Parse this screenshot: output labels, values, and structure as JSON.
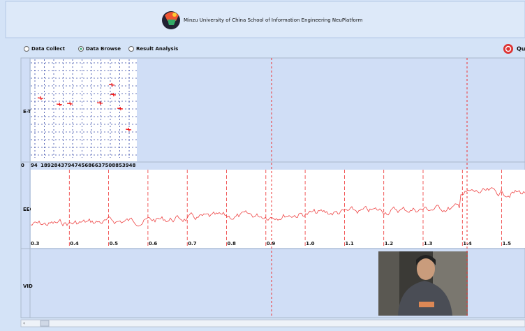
{
  "header": {
    "title": "Minzu University of China School of Information Engineering NeuPlatform"
  },
  "modes": [
    {
      "label": "Data Collect",
      "selected": false
    },
    {
      "label": "Data Browse",
      "selected": true
    },
    {
      "label": "Result Analysis",
      "selected": false
    }
  ],
  "quit": "Qu",
  "tracks": {
    "etr": "E-Tr",
    "eeg": "EEG",
    "vid": "VID"
  },
  "etr_axis": {
    "labels": [
      "0",
      "94",
      "1892843794745686637508853948"
    ]
  },
  "eeg_axis": {
    "ticks": [
      "0.3",
      "0.4",
      "0.5",
      "0.6",
      "0.7",
      "0.8",
      "0.9",
      "1.0",
      "1.1",
      "1.2",
      "1.3",
      "1.4",
      "1.5"
    ]
  }
}
